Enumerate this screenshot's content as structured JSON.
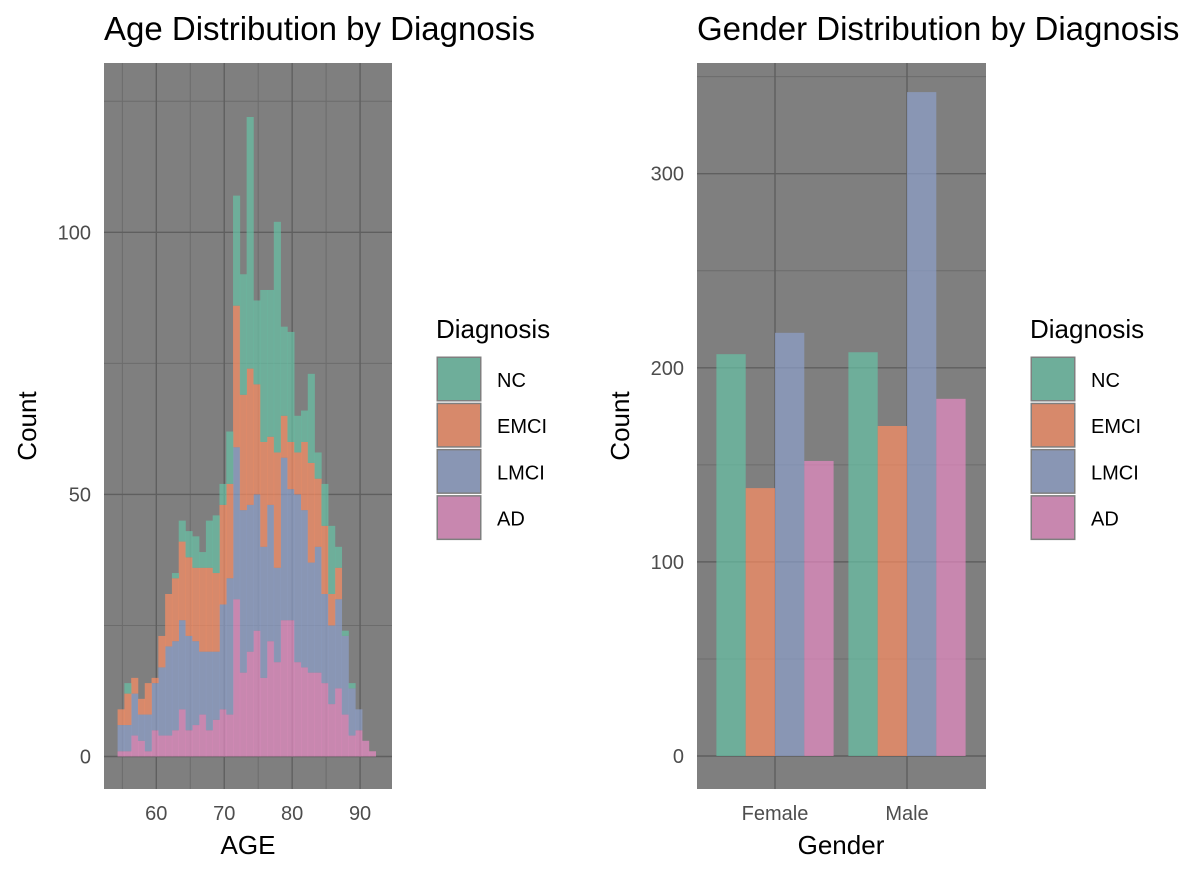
{
  "legend": {
    "title": "Diagnosis",
    "items": [
      {
        "label": "NC",
        "color": "#66c2a5"
      },
      {
        "label": "EMCI",
        "color": "#fc8d62"
      },
      {
        "label": "LMCI",
        "color": "#8da0cb"
      },
      {
        "label": "AD",
        "color": "#e78ac3"
      }
    ]
  },
  "panel_background": "#7f7f7f",
  "fill_alpha": 0.7,
  "chart_data": [
    {
      "type": "histogram",
      "stacked": true,
      "title": "Age Distribution by Diagnosis",
      "xlabel": "AGE",
      "ylabel": "Count",
      "x_ticks": [
        60,
        70,
        80,
        90
      ],
      "y_ticks": [
        0,
        50,
        100
      ],
      "xlim": [
        52.3,
        94.7
      ],
      "ylim": [
        -6.2,
        132.3
      ],
      "bin_edges": [
        54.3,
        55.3,
        56.3,
        57.3,
        58.3,
        59.3,
        60.3,
        61.3,
        62.3,
        63.3,
        64.3,
        65.3,
        66.3,
        67.3,
        68.3,
        69.3,
        70.3,
        71.3,
        72.3,
        73.3,
        74.3,
        75.3,
        76.3,
        77.3,
        78.3,
        79.3,
        80.3,
        81.3,
        82.3,
        83.3,
        84.3,
        85.3,
        86.3,
        87.3,
        88.3,
        89.3,
        90.3,
        91.3,
        92.3
      ],
      "series": [
        {
          "name": "AD",
          "values": [
            1,
            1,
            4,
            3,
            1,
            5,
            4,
            4,
            5,
            9,
            5,
            6,
            8,
            5,
            7,
            9,
            8,
            30,
            16,
            20,
            24,
            15,
            22,
            18,
            26,
            26,
            18,
            17,
            16,
            16,
            14,
            10,
            13,
            8,
            4,
            5,
            3,
            1
          ]
        },
        {
          "name": "LMCI",
          "values": [
            5,
            5,
            8,
            5,
            7,
            9,
            13,
            17,
            17,
            17,
            18,
            16,
            12,
            15,
            13,
            20,
            26,
            29,
            31,
            28,
            26,
            25,
            26,
            18,
            31,
            25,
            32,
            30,
            21,
            24,
            17,
            15,
            17,
            15,
            9,
            4,
            0,
            0
          ]
        },
        {
          "name": "EMCI",
          "values": [
            3,
            6,
            3,
            3,
            6,
            1,
            6,
            10,
            12,
            15,
            15,
            14,
            16,
            16,
            15,
            19,
            18,
            27,
            22,
            26,
            21,
            20,
            13,
            22,
            8,
            9,
            8,
            13,
            19,
            13,
            13,
            6,
            6,
            0,
            0,
            0,
            0,
            0
          ]
        },
        {
          "name": "NC",
          "values": [
            0,
            2,
            0,
            0,
            0,
            0,
            0,
            0,
            1,
            4,
            5,
            6,
            3,
            9,
            11,
            4,
            10,
            21,
            23,
            48,
            16,
            29,
            28,
            44,
            17,
            21,
            7,
            6,
            17,
            5,
            8,
            13,
            4,
            1,
            1,
            0,
            0,
            0
          ]
        }
      ]
    },
    {
      "type": "bar",
      "position": "dodge",
      "title": "Gender Distribution by Diagnosis",
      "xlabel": "Gender",
      "ylabel": "Count",
      "categories": [
        "Female",
        "Male"
      ],
      "y_ticks": [
        0,
        100,
        200,
        300
      ],
      "ylim": [
        -17,
        357
      ],
      "series": [
        {
          "name": "NC",
          "values": [
            207,
            208
          ]
        },
        {
          "name": "EMCI",
          "values": [
            138,
            170
          ]
        },
        {
          "name": "LMCI",
          "values": [
            218,
            342
          ]
        },
        {
          "name": "AD",
          "values": [
            152,
            184
          ]
        }
      ]
    }
  ]
}
